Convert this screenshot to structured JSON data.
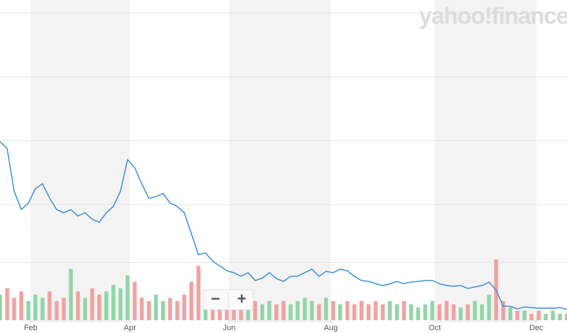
{
  "logo": "yahoo!finance",
  "controls": {
    "zoom_out": "−",
    "zoom_in": "+"
  },
  "chart_data": {
    "type": "line",
    "x": [
      0,
      3,
      6,
      9,
      12,
      15,
      18,
      21,
      24,
      27,
      30,
      33,
      36,
      39,
      42,
      45,
      48,
      51,
      54,
      57,
      60,
      63,
      66,
      69,
      72,
      75,
      78,
      81,
      84,
      87,
      90,
      93,
      96,
      99,
      102,
      105,
      108,
      111,
      114,
      117,
      120,
      123,
      126,
      129,
      132,
      135,
      138,
      141,
      144,
      147,
      150,
      153,
      156,
      159,
      162,
      165,
      168,
      171,
      174,
      177,
      180,
      183,
      186,
      189,
      192,
      195,
      198,
      201,
      204,
      207,
      210,
      213,
      216,
      219,
      222,
      225,
      228,
      231,
      234,
      237,
      240
    ],
    "series": [
      {
        "color": "#2b8ae0",
        "values": [
          56,
          54,
          40.7,
          35,
          37,
          41.5,
          43,
          38.5,
          35,
          34,
          35,
          33,
          34,
          32,
          31,
          34,
          36,
          40.7,
          50.5,
          48,
          43,
          38.5,
          39,
          40,
          37,
          36,
          34,
          27.5,
          21,
          21.5,
          19,
          17.5,
          16,
          15.4,
          14.3,
          15.4,
          13,
          13.7,
          15.4,
          13.6,
          12.7,
          14.3,
          14.3,
          15.4,
          16.5,
          14.3,
          15.8,
          15.4,
          16.5,
          16,
          14.3,
          13,
          12.7,
          12,
          11.4,
          12,
          12.7,
          12,
          12.5,
          12.7,
          13,
          13,
          12,
          11.4,
          11.2,
          11.4,
          10.5,
          11,
          11.4,
          12.5,
          10,
          5,
          5,
          4.2,
          4.8,
          4.6,
          4.4,
          4.4,
          4.4,
          4.6,
          4
        ]
      },
      {
        "type": "bar",
        "axis": "y2",
        "up_color": "#8fd6a6",
        "down_color": "#f4a0a0",
        "values": [
          8,
          10,
          7,
          9,
          6,
          8,
          7,
          9,
          6,
          7,
          16,
          9,
          7,
          10,
          8,
          9,
          11,
          10,
          14,
          12,
          7,
          6,
          8,
          6,
          7,
          6,
          8,
          12,
          17,
          9,
          8,
          7,
          6,
          7,
          6,
          5,
          6,
          5,
          6,
          5,
          6,
          5,
          6,
          7,
          6,
          5,
          7,
          6,
          5,
          6,
          5,
          6,
          5,
          6,
          5,
          6,
          5,
          6,
          5,
          4,
          5,
          6,
          5,
          6,
          5,
          4,
          5,
          6,
          5,
          8,
          19,
          6,
          4,
          3,
          3,
          2,
          3,
          2,
          3,
          2,
          2
        ]
      }
    ],
    "xlim": [
      0,
      240
    ],
    "xticks": [
      {
        "value": 13,
        "label": "Feb"
      },
      {
        "value": 55,
        "label": "Apr"
      },
      {
        "value": 97,
        "label": "Jun"
      },
      {
        "value": 140,
        "label": "Aug"
      },
      {
        "value": 184,
        "label": "Oct"
      },
      {
        "value": 227,
        "label": "Dec"
      }
    ],
    "ylim": [
      0,
      100
    ],
    "y2lim": [
      0,
      100
    ],
    "shade_color": "#f3f3f3"
  }
}
